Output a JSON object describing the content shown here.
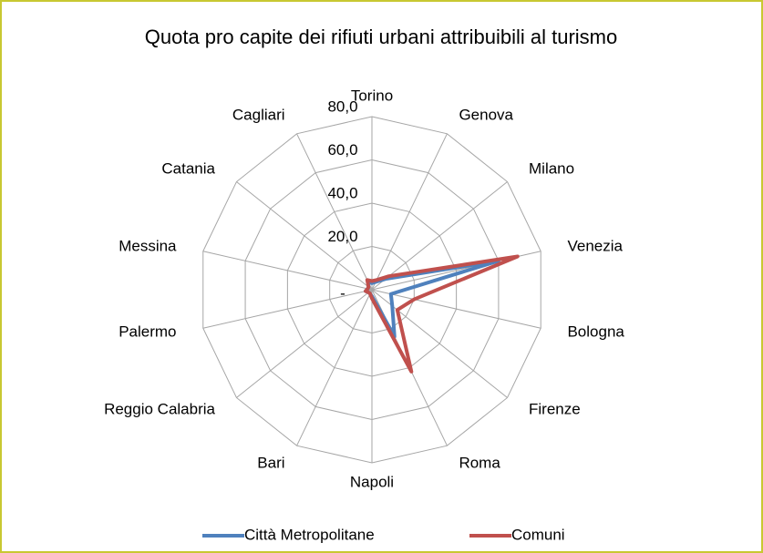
{
  "chart_data": {
    "type": "radar",
    "title": "Quota pro capite dei rifiuti urbani attribuibili al turismo",
    "categories": [
      "Torino",
      "Genova",
      "Milano",
      "Venezia",
      "Bologna",
      "Firenze",
      "Roma",
      "Napoli",
      "Bari",
      "Reggio Calabria",
      "Palermo",
      "Messina",
      "Catania",
      "Cagliari"
    ],
    "series": [
      {
        "name": "Città Metropolitane",
        "color": "#4f81bd",
        "values": [
          3,
          4,
          8,
          60,
          9,
          12,
          24,
          3,
          2,
          2,
          3,
          2,
          2,
          4
        ]
      },
      {
        "name": "Comuni",
        "color": "#c0504d",
        "values": [
          4,
          5,
          10,
          69,
          20,
          15,
          42,
          4,
          2,
          2,
          3,
          2,
          2,
          5
        ]
      }
    ],
    "ylim": [
      0,
      80
    ],
    "yticks": [
      {
        "value": 0,
        "label": "-"
      },
      {
        "value": 20,
        "label": "20,0"
      },
      {
        "value": 40,
        "label": "40,0"
      },
      {
        "value": 60,
        "label": "60,0"
      },
      {
        "value": 80,
        "label": "80,0"
      }
    ],
    "grid": true,
    "legend": "bottom"
  }
}
